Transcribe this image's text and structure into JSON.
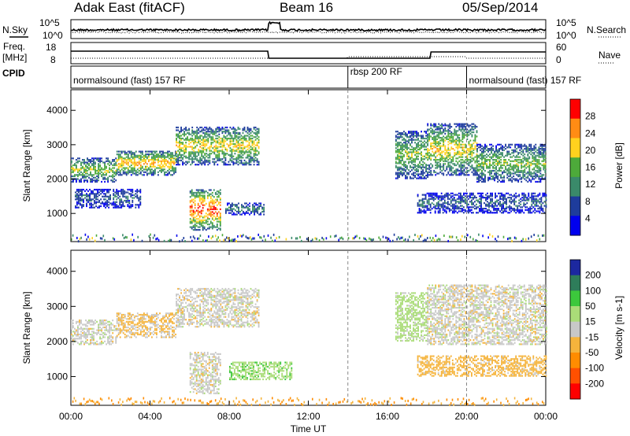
{
  "header": {
    "radar": "Adak East (fitACF)",
    "beam": "Beam 16",
    "date": "05/Sep/2014"
  },
  "status_panels": {
    "nsky_label": "N.Sky",
    "nsearch_label": "N.Search",
    "freq_label": "Freq.",
    "freq_unit": "[MHz]",
    "nave_label": "Nave",
    "cpid_label": "CPID",
    "noise_left_ticks": [
      "10^5",
      "10^0"
    ],
    "noise_right_ticks": [
      "10^5",
      "10^0"
    ],
    "freq_ticks": [
      "18",
      "8"
    ],
    "nave_ticks": [
      "60",
      "0"
    ]
  },
  "cpid_segments": [
    {
      "label": "normalsound (fast) 157 RF",
      "start_hour": 0.0,
      "end_hour": 14.0
    },
    {
      "label": "rbsp 200 RF",
      "start_hour": 14.0,
      "end_hour": 20.0
    },
    {
      "label": "normalsound (fast) 157 RF",
      "start_hour": 20.0,
      "end_hour": 24.0
    }
  ],
  "chart_data": [
    {
      "type": "heatmap",
      "title": "Power",
      "ylabel": "Slant Range [km]",
      "xlabel": "Time UT",
      "x_ticks": [
        "00:00",
        "04:00",
        "08:00",
        "12:00",
        "16:00",
        "20:00",
        "00:00"
      ],
      "x_range_hours": [
        0,
        24
      ],
      "y_ticks": [
        1000,
        2000,
        3000,
        4000
      ],
      "ylim": [
        180,
        4600
      ],
      "colorbar": {
        "label": "Power [dB]",
        "ticks": [
          "4",
          "8",
          "12",
          "16",
          "20",
          "24",
          "28"
        ],
        "range": [
          0,
          30
        ],
        "colors": [
          "#0000ee",
          "#1e3c9c",
          "#3a8a6a",
          "#4daa3a",
          "#ffd21e",
          "#ff8c14",
          "#ff0000"
        ]
      },
      "echo_regions": [
        {
          "t0": 0.0,
          "t1": 2.3,
          "r0": 1900,
          "r1": 2600,
          "level": 14
        },
        {
          "t0": 2.3,
          "t1": 5.3,
          "r0": 2100,
          "r1": 2800,
          "level": 18
        },
        {
          "t0": 5.3,
          "t1": 9.5,
          "r0": 2400,
          "r1": 3500,
          "level": 16
        },
        {
          "t0": 0.2,
          "t1": 3.5,
          "r0": 1150,
          "r1": 1700,
          "level": 7
        },
        {
          "t0": 6.0,
          "t1": 7.6,
          "r0": 500,
          "r1": 1700,
          "level": 22
        },
        {
          "t0": 7.8,
          "t1": 9.8,
          "r0": 950,
          "r1": 1300,
          "level": 9
        },
        {
          "t0": 16.4,
          "t1": 18.0,
          "r0": 2000,
          "r1": 3400,
          "level": 13
        },
        {
          "t0": 18.0,
          "t1": 20.5,
          "r0": 2100,
          "r1": 3600,
          "level": 16
        },
        {
          "t0": 20.5,
          "t1": 24.0,
          "r0": 1900,
          "r1": 3000,
          "level": 13
        },
        {
          "t0": 17.5,
          "t1": 24.0,
          "r0": 1000,
          "r1": 1600,
          "level": 7
        }
      ]
    },
    {
      "type": "heatmap",
      "title": "Velocity",
      "ylabel": "Slant Range [km]",
      "xlabel": "Time UT",
      "x_ticks": [
        "00:00",
        "04:00",
        "08:00",
        "12:00",
        "16:00",
        "20:00",
        "00:00"
      ],
      "x_range_hours": [
        0,
        24
      ],
      "y_ticks": [
        1000,
        2000,
        3000,
        4000
      ],
      "ylim": [
        180,
        4600
      ],
      "colorbar": {
        "label": "Velocity [m s-1]",
        "ticks": [
          "200",
          "100",
          "50",
          "15",
          "-15",
          "-50",
          "-100",
          "-200"
        ],
        "colors": [
          "#1c28a0",
          "#2e7d5a",
          "#3cc83c",
          "#aadc78",
          "#c8c8c8",
          "#f5b43c",
          "#ff8c00",
          "#ff5000",
          "#ff0000"
        ]
      },
      "echo_regions": [
        {
          "t0": 0.0,
          "t1": 2.3,
          "r0": 1900,
          "r1": 2600,
          "level": 0
        },
        {
          "t0": 2.3,
          "t1": 5.3,
          "r0": 2100,
          "r1": 2800,
          "level": -20
        },
        {
          "t0": 5.3,
          "t1": 9.5,
          "r0": 2400,
          "r1": 3500,
          "level": 0
        },
        {
          "t0": 6.0,
          "t1": 7.6,
          "r0": 500,
          "r1": 1700,
          "level": 0
        },
        {
          "t0": 8.0,
          "t1": 11.2,
          "r0": 900,
          "r1": 1400,
          "level": 40
        },
        {
          "t0": 16.4,
          "t1": 18.0,
          "r0": 2000,
          "r1": 3400,
          "level": 30
        },
        {
          "t0": 18.0,
          "t1": 24.0,
          "r0": 1900,
          "r1": 3600,
          "level": 0
        },
        {
          "t0": 17.5,
          "t1": 24.0,
          "r0": 1000,
          "r1": 1600,
          "level": -30
        }
      ]
    }
  ]
}
